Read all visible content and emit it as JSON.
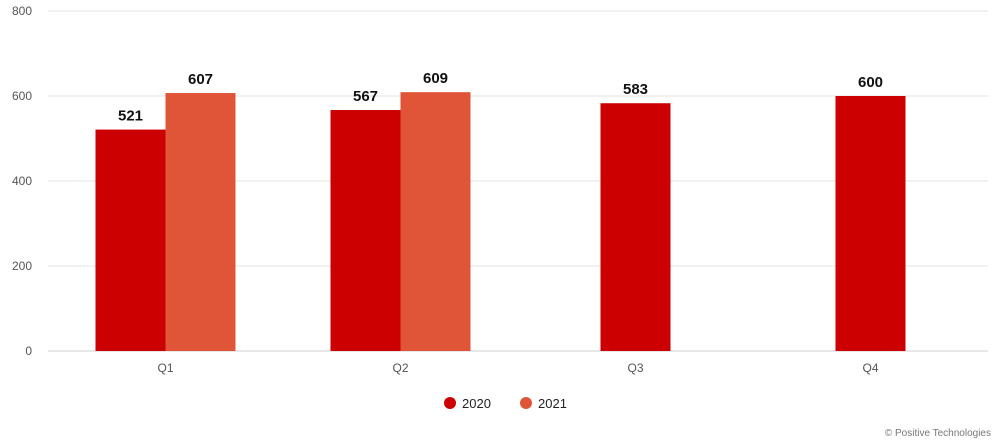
{
  "chart_data": {
    "type": "bar",
    "title": "",
    "xlabel": "",
    "ylabel": "",
    "categories": [
      "Q1",
      "Q2",
      "Q3",
      "Q4"
    ],
    "series": [
      {
        "name": "2020",
        "color": "#cc0000",
        "values": [
          521,
          567,
          583,
          600
        ]
      },
      {
        "name": "2021",
        "color": "#e05538",
        "values": [
          607,
          609,
          null,
          null
        ]
      }
    ],
    "ylim": [
      0,
      800
    ],
    "yticks": [
      0,
      200,
      400,
      600,
      800
    ],
    "grid": true,
    "legend_position": "bottom"
  },
  "footer": {
    "copyright": "© Positive Technologies"
  }
}
